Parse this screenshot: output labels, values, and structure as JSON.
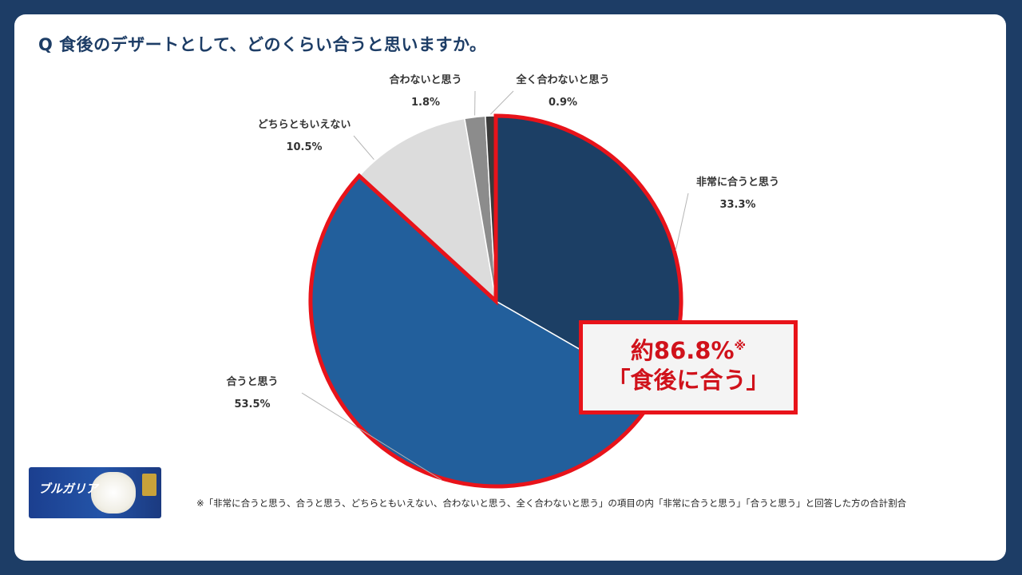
{
  "question": "Q 食後のデザートとして、どのくらい合うと思いますか。",
  "chart_data": {
    "type": "pie",
    "title": "Q 食後のデザートとして、どのくらい合うと思いますか。",
    "slices": [
      {
        "label": "非常に合うと思う",
        "value": 33.3,
        "display": "33.3%",
        "color": "#1c3f65"
      },
      {
        "label": "合うと思う",
        "value": 53.5,
        "display": "53.5%",
        "color": "#225f9c"
      },
      {
        "label": "どちらともいえない",
        "value": 10.5,
        "display": "10.5%",
        "color": "#dcdcdc"
      },
      {
        "label": "合わないと思う",
        "value": 1.8,
        "display": "1.8%",
        "color": "#8c8c8c"
      },
      {
        "label": "全く合わないと思う",
        "value": 0.9,
        "display": "0.9%",
        "color": "#3a3a3a"
      }
    ],
    "highlight": {
      "slices": [
        "非常に合うと思う",
        "合うと思う"
      ],
      "color": "#e8131a"
    }
  },
  "callout": {
    "value": "約86.8%",
    "mark": "※",
    "label": "「食後に合う」"
  },
  "footnote": "※「非常に合うと思う、合うと思う、どちらともいえない、合わないと思う、全く合わないと思う」の項目の内「非常に合うと思う」「合うと思う」と回答した方の合計割合",
  "product": {
    "name": "ブルガリア",
    "icon": "product-package-image"
  }
}
